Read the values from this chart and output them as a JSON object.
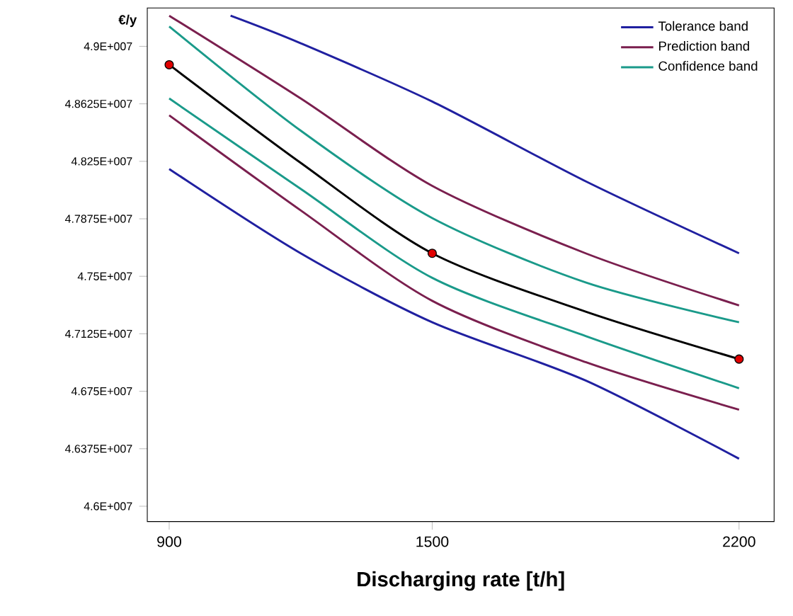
{
  "chart_data": {
    "type": "line",
    "xlabel": "Discharging rate [t/h]",
    "ylabel": "€/y",
    "x": [
      900,
      1200,
      1500,
      1850,
      2200
    ],
    "xlim": [
      850,
      2280
    ],
    "ylim": [
      45900000,
      49250000
    ],
    "xticks": [
      900,
      1500,
      2200
    ],
    "yticks": [
      {
        "value": 46000000,
        "label": "4.6E+007"
      },
      {
        "value": 46375000,
        "label": "4.6375E+007"
      },
      {
        "value": 46750000,
        "label": "4.675E+007"
      },
      {
        "value": 47125000,
        "label": "4.7125E+007"
      },
      {
        "value": 47500000,
        "label": "4.75E+007"
      },
      {
        "value": 47875000,
        "label": "4.7875E+007"
      },
      {
        "value": 48250000,
        "label": "4.825E+007"
      },
      {
        "value": 48625000,
        "label": "4.8625E+007"
      },
      {
        "value": 49000000,
        "label": "4.9E+007"
      }
    ],
    "grid": false,
    "legend": "top right",
    "line_style": "solid",
    "marker": "none",
    "series": [
      {
        "name": "Tolerance band",
        "color": "#2020a0",
        "x": [
          1040,
          1200,
          1500,
          1850,
          2200
        ],
        "values": [
          49200000,
          49020000,
          48640000,
          48120000,
          47650000
        ]
      },
      {
        "color": "#2020a0",
        "values": [
          48200000,
          47650000,
          47200000,
          46820000,
          46310000
        ]
      },
      {
        "name": "Prediction band",
        "color": "#7a1f4e",
        "values": [
          49200000,
          48660000,
          48090000,
          47650000,
          47310000
        ]
      },
      {
        "color": "#7a1f4e",
        "values": [
          48550000,
          47930000,
          47340000,
          46940000,
          46630000
        ]
      },
      {
        "name": "Confidence band",
        "color": "#1a9a8a",
        "values": [
          49130000,
          48450000,
          47880000,
          47460000,
          47200000
        ]
      },
      {
        "color": "#1a9a8a",
        "values": [
          48660000,
          48070000,
          47490000,
          47110000,
          46770000
        ]
      },
      {
        "color": "#000000",
        "values": [
          48880000,
          48240000,
          47650000,
          47270000,
          46960000
        ]
      },
      {
        "type": "scatter",
        "marker": "circle",
        "color": "#e00000",
        "x": [
          900,
          1500,
          2200
        ],
        "values": [
          48880000,
          47650000,
          46960000
        ]
      }
    ]
  }
}
